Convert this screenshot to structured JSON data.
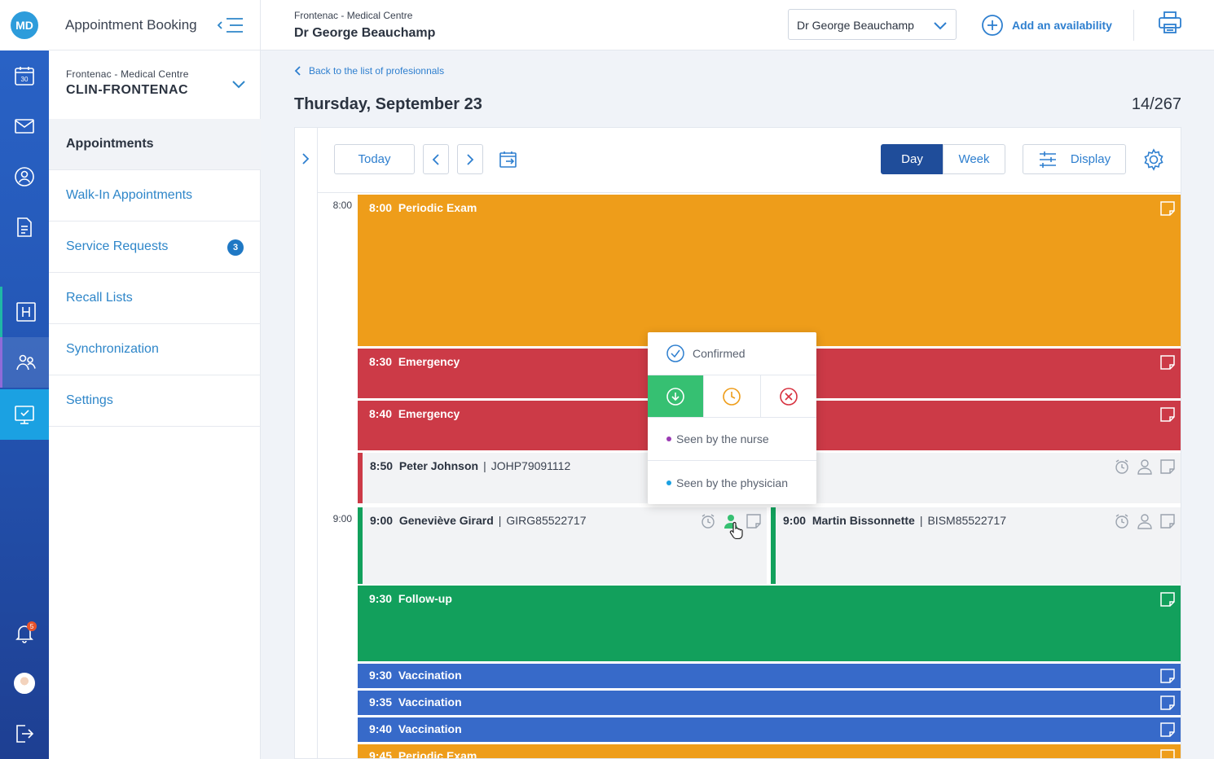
{
  "logo": {
    "text": "MD"
  },
  "rail": {
    "calendar_day": "30",
    "notifications_count": "5"
  },
  "sidebar": {
    "title": "Appointment Booking",
    "clinic": {
      "name": "Frontenac - Medical Centre",
      "code": "CLIN-FRONTENAC"
    },
    "items": [
      {
        "label": "Appointments",
        "active": true
      },
      {
        "label": "Walk-In Appointments"
      },
      {
        "label": "Service Requests",
        "badge": "3"
      },
      {
        "label": "Recall Lists"
      },
      {
        "label": "Synchronization"
      },
      {
        "label": "Settings"
      }
    ]
  },
  "header": {
    "clinic": "Frontenac - Medical Centre",
    "doctor": "Dr George Beauchamp",
    "doctor_select": "Dr George Beauchamp",
    "add_availability": "Add an availability"
  },
  "main": {
    "back_link": "Back to the list of profesionnals",
    "date": "Thursday, September 23",
    "counter": "14/267"
  },
  "toolbar": {
    "today": "Today",
    "day": "Day",
    "week": "Week",
    "display": "Display"
  },
  "time_labels": [
    "8:00",
    "9:00"
  ],
  "appointments": [
    {
      "time": "8:00",
      "title": "Periodic Exam"
    },
    {
      "time": "8:30",
      "title": "Emergency"
    },
    {
      "time": "8:40",
      "title": "Emergency"
    },
    {
      "time": "8:50",
      "name": "Peter Johnson",
      "code": "JOHP79091112"
    },
    {
      "time": "9:00",
      "name": "Geneviève Girard",
      "code": "GIRG85522717"
    },
    {
      "time": "9:00",
      "name": "Martin Bissonnette",
      "code": "BISM85522717"
    },
    {
      "time": "9:30",
      "title": "Follow-up"
    },
    {
      "time": "9:30",
      "title": "Vaccination"
    },
    {
      "time": "9:35",
      "title": "Vaccination"
    },
    {
      "time": "9:40",
      "title": "Vaccination"
    },
    {
      "time": "9:45",
      "title": "Periodic Exam"
    }
  ],
  "popover": {
    "confirmed": "Confirmed",
    "options": [
      "Seen by the nurse",
      "Seen by the physician"
    ]
  },
  "colors": {
    "accent": "#2e7fcf",
    "orange": "#ee9d1a",
    "red": "#cc3a47",
    "green": "#12a05c",
    "blue": "#376ac9",
    "arrived": "#36c072"
  }
}
